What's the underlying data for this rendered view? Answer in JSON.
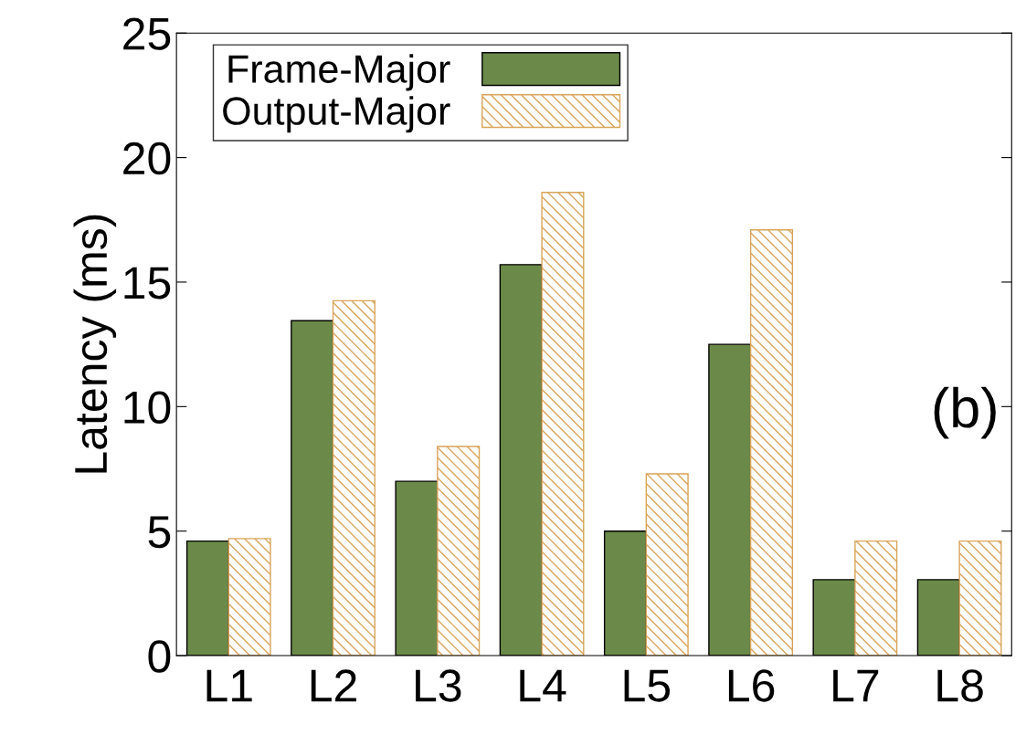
{
  "chart_data": {
    "type": "bar",
    "ylabel": "Latency (ms)",
    "categories": [
      "L1",
      "L2",
      "L3",
      "L4",
      "L5",
      "L6",
      "L7",
      "L8"
    ],
    "series": [
      {
        "name": "Frame-Major",
        "color": "#6b8a4a",
        "values": [
          4.6,
          13.45,
          7.0,
          15.7,
          5.0,
          12.5,
          3.05,
          3.05
        ]
      },
      {
        "name": "Output-Major",
        "color": "#d9a45a",
        "values": [
          4.7,
          14.25,
          8.4,
          18.6,
          7.3,
          17.1,
          4.6,
          4.6
        ]
      }
    ],
    "ylim": [
      0,
      25
    ],
    "yticks": [
      0,
      5,
      10,
      15,
      20,
      25
    ],
    "grid": false,
    "legend": "top",
    "annotations": [
      "(b)"
    ]
  }
}
